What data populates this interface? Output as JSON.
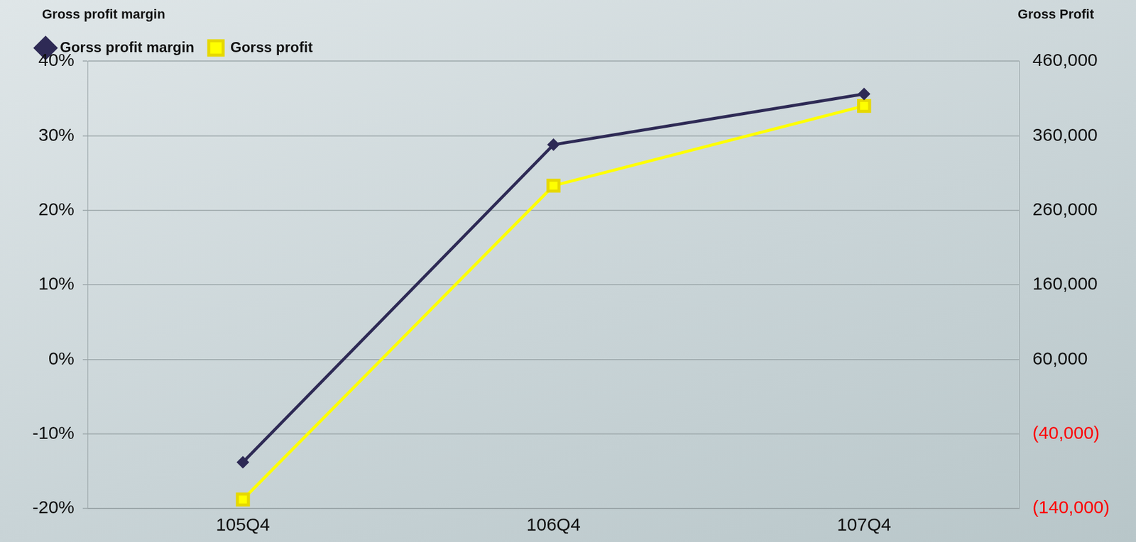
{
  "chart_data": {
    "type": "line",
    "categories": [
      "105Q4",
      "106Q4",
      "107Q4"
    ],
    "y_label": "Gross profit margin",
    "y2_label": "Gross Profit",
    "series": [
      {
        "name": "Gorss profit margin",
        "color": "#2e2a55",
        "marker": "diamond",
        "values": [
          -13.8,
          28.8,
          35.6
        ]
      },
      {
        "name": "Gorss profit",
        "color": "#ffff00",
        "marker": "square",
        "axis": "y2",
        "values": [
          -128000,
          293000,
          400000
        ]
      }
    ],
    "ylim": [
      -20,
      40
    ],
    "yticks": [
      {
        "value": -20,
        "label": "-20%"
      },
      {
        "value": -10,
        "label": "-10%"
      },
      {
        "value": 0,
        "label": "0%"
      },
      {
        "value": 10,
        "label": "10%"
      },
      {
        "value": 20,
        "label": "20%"
      },
      {
        "value": 30,
        "label": "30%"
      },
      {
        "value": 40,
        "label": "40%"
      }
    ],
    "y2lim": [
      -140000,
      460000
    ],
    "y2ticks": [
      {
        "value": -140000,
        "label": "(140,000)"
      },
      {
        "value": -40000,
        "label": "(40,000)"
      },
      {
        "value": 60000,
        "label": "60,000"
      },
      {
        "value": 160000,
        "label": "160,000"
      },
      {
        "value": 260000,
        "label": "260,000"
      },
      {
        "value": 360000,
        "label": "360,000"
      },
      {
        "value": 460000,
        "label": "460,000"
      }
    ],
    "grid": true,
    "legend": "upper left"
  }
}
